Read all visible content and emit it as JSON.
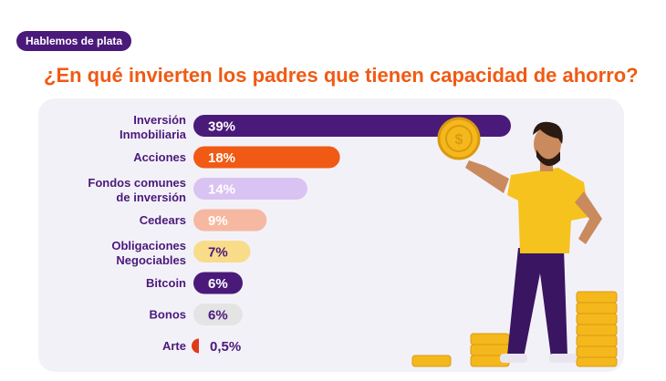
{
  "tag": "Hablemos de plata",
  "title": "¿En qué invierten los padres que tienen capacidad de ahorro?",
  "chart_data": {
    "type": "bar",
    "orientation": "horizontal",
    "title": "¿En qué invierten los padres que tienen capacidad de ahorro?",
    "categories": [
      "Inversión Inmobiliaria",
      "Acciones",
      "Fondos comunes de inversión",
      "Cedears",
      "Obligaciones Negociables",
      "Bitcoin",
      "Bonos",
      "Arte"
    ],
    "category_lines": [
      [
        "Inversión",
        "Inmobiliaria"
      ],
      [
        "Acciones"
      ],
      [
        "Fondos comunes",
        "de inversión"
      ],
      [
        "Cedears"
      ],
      [
        "Obligaciones",
        "Negociables"
      ],
      [
        "Bitcoin"
      ],
      [
        "Bonos"
      ],
      [
        "Arte"
      ]
    ],
    "values": [
      39,
      18,
      14,
      9,
      7,
      6,
      6,
      0.5
    ],
    "value_labels": [
      "39%",
      "18%",
      "14%",
      "9%",
      "7%",
      "6%",
      "6%",
      "0,5%"
    ],
    "colors": [
      "#4a1a7a",
      "#f05a14",
      "#d9c3f2",
      "#f6b8a0",
      "#f8dc8a",
      "#4a1a7a",
      "#e4e4e4",
      "#e03a1a"
    ],
    "label_colors": [
      "#ffffff",
      "#ffffff",
      "#ffffff",
      "#ffffff",
      "#4a1a7a",
      "#ffffff",
      "#4a1a7a",
      "#4a1a7a"
    ],
    "xlim": [
      0,
      39
    ],
    "grid": false,
    "legend": "none"
  }
}
